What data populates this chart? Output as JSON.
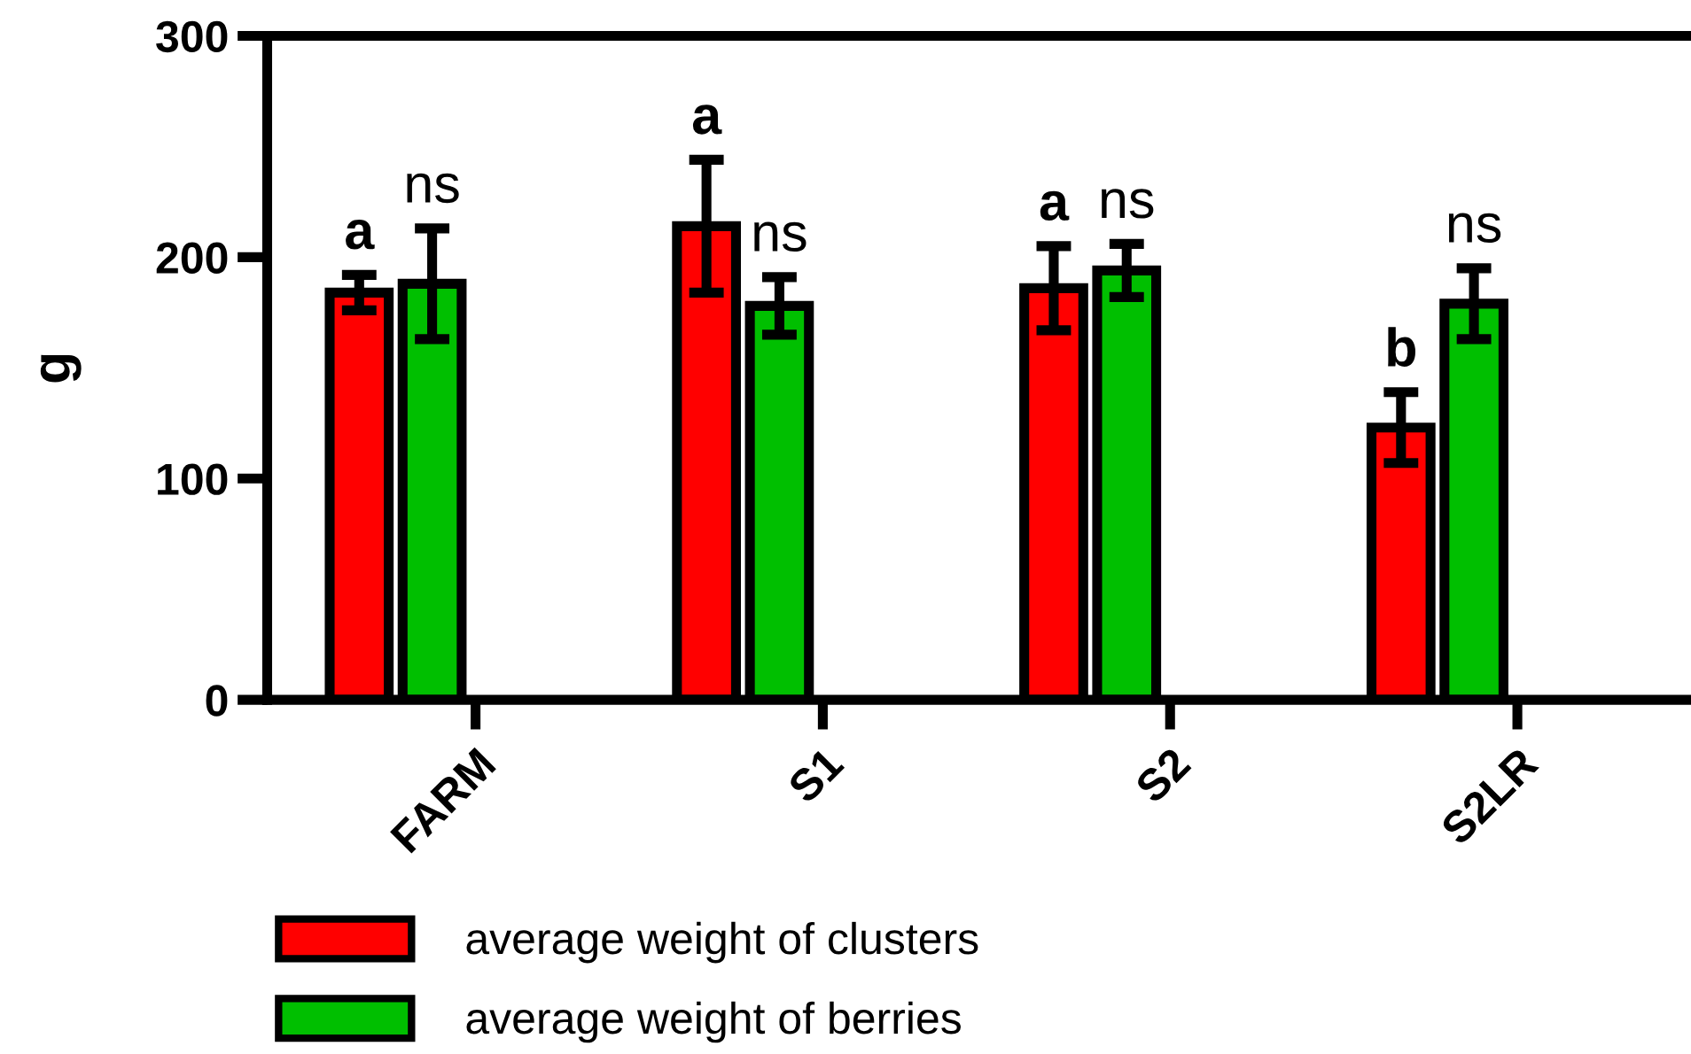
{
  "chart_data": {
    "type": "bar",
    "ylabel": "g",
    "categories": [
      "FARM",
      "S1",
      "S2",
      "S2LR"
    ],
    "ylim": [
      0,
      300
    ],
    "yticks": [
      0,
      100,
      200,
      300
    ],
    "legend": "bottom",
    "grid": false,
    "series": [
      {
        "name": "average weight of clusters",
        "color": "#ff0000",
        "values": [
          184,
          214,
          186,
          123
        ],
        "errors": [
          8,
          30,
          19,
          16
        ]
      },
      {
        "name": "average weight of berries",
        "color": "#00bf00",
        "values": [
          188,
          178,
          194,
          179
        ],
        "errors": [
          25,
          13,
          12,
          16
        ]
      }
    ],
    "annotations": [
      "a",
      "ns",
      "a",
      "ns",
      "a",
      "ns",
      "b",
      "ns"
    ]
  }
}
